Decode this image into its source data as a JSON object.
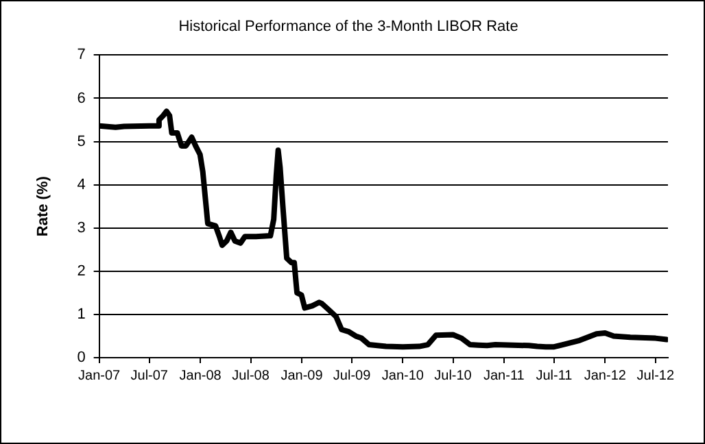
{
  "chart_data": {
    "type": "line",
    "title": "Historical Performance of the 3-Month LIBOR Rate",
    "ylabel": "Rate (%)",
    "x": [
      "2007-01-01",
      "2007-03-01",
      "2007-04-01",
      "2007-07-01",
      "2007-08-01",
      "2007-08-05",
      "2007-08-20",
      "2007-09-01",
      "2007-09-12",
      "2007-09-20",
      "2007-10-10",
      "2007-10-25",
      "2007-11-10",
      "2007-12-01",
      "2007-12-15",
      "2007-12-31",
      "2008-01-10",
      "2008-01-28",
      "2008-02-25",
      "2008-03-10",
      "2008-03-20",
      "2008-04-05",
      "2008-04-20",
      "2008-05-05",
      "2008-05-25",
      "2008-06-10",
      "2008-07-20",
      "2008-09-10",
      "2008-09-22",
      "2008-10-01",
      "2008-10-08",
      "2008-10-15",
      "2008-10-25",
      "2008-11-08",
      "2008-11-25",
      "2008-12-05",
      "2008-12-15",
      "2008-12-31",
      "2009-01-12",
      "2009-02-08",
      "2009-03-05",
      "2009-03-15",
      "2009-04-10",
      "2009-05-05",
      "2009-05-25",
      "2009-06-20",
      "2009-07-15",
      "2009-08-05",
      "2009-09-01",
      "2009-10-01",
      "2009-11-01",
      "2010-01-01",
      "2010-03-01",
      "2010-04-01",
      "2010-05-01",
      "2010-07-01",
      "2010-08-01",
      "2010-09-01",
      "2010-10-01",
      "2010-11-01",
      "2010-12-01",
      "2011-04-01",
      "2011-05-01",
      "2011-06-01",
      "2011-07-01",
      "2011-08-01",
      "2011-10-01",
      "2011-12-01",
      "2012-01-01",
      "2012-02-01",
      "2012-04-01",
      "2012-07-01",
      "2012-08-10"
    ],
    "series": [
      {
        "color": "#000000",
        "values": [
          5.36,
          5.33,
          5.35,
          5.36,
          5.36,
          5.5,
          5.6,
          5.7,
          5.6,
          5.2,
          5.2,
          4.9,
          4.9,
          5.1,
          4.9,
          4.7,
          4.3,
          3.1,
          3.05,
          2.8,
          2.6,
          2.7,
          2.9,
          2.7,
          2.65,
          2.8,
          2.8,
          2.82,
          3.2,
          4.2,
          4.8,
          4.4,
          3.5,
          2.3,
          2.2,
          2.2,
          1.5,
          1.45,
          1.15,
          1.2,
          1.28,
          1.25,
          1.1,
          0.95,
          0.65,
          0.6,
          0.5,
          0.45,
          0.3,
          0.28,
          0.26,
          0.25,
          0.26,
          0.3,
          0.52,
          0.53,
          0.45,
          0.3,
          0.29,
          0.28,
          0.3,
          0.28,
          0.26,
          0.25,
          0.25,
          0.3,
          0.4,
          0.55,
          0.57,
          0.5,
          0.47,
          0.45,
          0.42
        ]
      }
    ],
    "xlim": [
      "2007-01-01",
      "2012-08-15"
    ],
    "xticks": [
      {
        "value": "2007-01-01",
        "label": "Jan-07"
      },
      {
        "value": "2007-07-01",
        "label": "Jul-07"
      },
      {
        "value": "2008-01-01",
        "label": "Jan-08"
      },
      {
        "value": "2008-07-01",
        "label": "Jul-08"
      },
      {
        "value": "2009-01-01",
        "label": "Jan-09"
      },
      {
        "value": "2009-07-01",
        "label": "Jul-09"
      },
      {
        "value": "2010-01-01",
        "label": "Jan-10"
      },
      {
        "value": "2010-07-01",
        "label": "Jul-10"
      },
      {
        "value": "2011-01-01",
        "label": "Jan-11"
      },
      {
        "value": "2011-07-01",
        "label": "Jul-11"
      },
      {
        "value": "2012-01-01",
        "label": "Jan-12"
      },
      {
        "value": "2012-07-01",
        "label": "Jul-12"
      }
    ],
    "ylim": [
      0,
      7
    ],
    "yticks": [
      0,
      1,
      2,
      3,
      4,
      5,
      6,
      7
    ],
    "grid": "y",
    "legend": false,
    "marker": "none",
    "line_style": "solid"
  }
}
